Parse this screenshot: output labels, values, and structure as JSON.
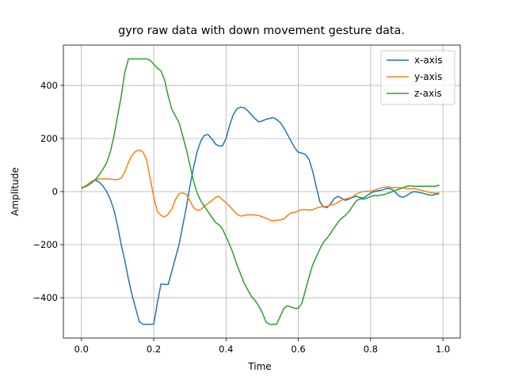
{
  "chart_data": {
    "type": "line",
    "title": "gyro raw data with down movement gesture data.",
    "x_label": "Time",
    "y_label": "Amplitude",
    "x": [
      0,
      0.01,
      0.02,
      0.03,
      0.04,
      0.05,
      0.06,
      0.07,
      0.08,
      0.09,
      0.1,
      0.11,
      0.12,
      0.13,
      0.14,
      0.15,
      0.16,
      0.17,
      0.18,
      0.19,
      0.2,
      0.21,
      0.22,
      0.23,
      0.24,
      0.25,
      0.26,
      0.27,
      0.28,
      0.29,
      0.3,
      0.31,
      0.32,
      0.33,
      0.34,
      0.35,
      0.36,
      0.37,
      0.38,
      0.39,
      0.4,
      0.41,
      0.42,
      0.43,
      0.44,
      0.45,
      0.46,
      0.47,
      0.48,
      0.49,
      0.5,
      0.51,
      0.52,
      0.53,
      0.54,
      0.55,
      0.56,
      0.57,
      0.58,
      0.59,
      0.6,
      0.61,
      0.62,
      0.63,
      0.64,
      0.65,
      0.66,
      0.67,
      0.68,
      0.69,
      0.7,
      0.71,
      0.72,
      0.73,
      0.74,
      0.75,
      0.76,
      0.77,
      0.78,
      0.79,
      0.8,
      0.81,
      0.82,
      0.83,
      0.84,
      0.85,
      0.86,
      0.87,
      0.88,
      0.89,
      0.9,
      0.91,
      0.92,
      0.93,
      0.94,
      0.95,
      0.96,
      0.97,
      0.98,
      0.99
    ],
    "series": [
      {
        "name": "x-axis",
        "color": "#1f77b4",
        "values": [
          13,
          20,
          30,
          40,
          42,
          35,
          20,
          0,
          -30,
          -70,
          -130,
          -200,
          -260,
          -330,
          -390,
          -440,
          -490,
          -500,
          -500,
          -500,
          -500,
          -420,
          -348,
          -350,
          -350,
          -300,
          -250,
          -200,
          -130,
          -60,
          20,
          90,
          150,
          190,
          212,
          215,
          200,
          180,
          172,
          172,
          200,
          250,
          290,
          312,
          318,
          316,
          305,
          290,
          275,
          263,
          266,
          272,
          276,
          279,
          272,
          260,
          240,
          215,
          190,
          165,
          148,
          145,
          140,
          120,
          75,
          15,
          -40,
          -58,
          -60,
          -45,
          -25,
          -18,
          -25,
          -33,
          -28,
          -22,
          -18,
          -22,
          -25,
          -15,
          -5,
          0,
          3,
          5,
          10,
          12,
          8,
          -5,
          -18,
          -22,
          -15,
          -5,
          0,
          -2,
          -5,
          -8,
          -12,
          -14,
          -10,
          -8
        ]
      },
      {
        "name": "y-axis",
        "color": "#ff7f0e",
        "values": [
          15,
          20,
          30,
          38,
          45,
          48,
          48,
          48,
          47,
          45,
          45,
          52,
          75,
          110,
          138,
          152,
          157,
          150,
          120,
          50,
          -20,
          -75,
          -90,
          -95,
          -85,
          -65,
          -30,
          -8,
          -5,
          -10,
          -35,
          -60,
          -70,
          -68,
          -55,
          -45,
          -35,
          -22,
          -18,
          -30,
          -42,
          -55,
          -70,
          -85,
          -92,
          -90,
          -87,
          -88,
          -88,
          -90,
          -95,
          -100,
          -107,
          -110,
          -108,
          -107,
          -103,
          -90,
          -80,
          -78,
          -72,
          -68,
          -68,
          -70,
          -68,
          -62,
          -58,
          -57,
          -55,
          -50,
          -48,
          -40,
          -32,
          -28,
          -25,
          -20,
          -10,
          -3,
          0,
          2,
          1,
          5,
          10,
          15,
          17,
          18,
          15,
          15,
          15,
          13,
          12,
          10,
          12,
          8,
          5,
          2,
          -2,
          -5,
          -6,
          -5
        ]
      },
      {
        "name": "z-axis",
        "color": "#2ca02c",
        "values": [
          13,
          18,
          25,
          35,
          48,
          65,
          85,
          110,
          150,
          210,
          285,
          360,
          450,
          500,
          500,
          500,
          500,
          500,
          500,
          495,
          480,
          465,
          455,
          420,
          360,
          310,
          285,
          260,
          210,
          160,
          100,
          40,
          -5,
          -35,
          -55,
          -75,
          -95,
          -115,
          -125,
          -140,
          -170,
          -200,
          -235,
          -275,
          -310,
          -345,
          -370,
          -395,
          -410,
          -430,
          -455,
          -490,
          -500,
          -500,
          -500,
          -470,
          -440,
          -430,
          -435,
          -440,
          -440,
          -420,
          -370,
          -320,
          -275,
          -245,
          -215,
          -190,
          -175,
          -155,
          -135,
          -115,
          -100,
          -90,
          -75,
          -55,
          -35,
          -28,
          -28,
          -25,
          -18,
          -15,
          -15,
          -13,
          -10,
          -5,
          0,
          5,
          10,
          15,
          20,
          22,
          20,
          20,
          20,
          20,
          20,
          20,
          20,
          25
        ]
      }
    ],
    "xlim": [
      -0.05,
      1.048
    ],
    "ylim": [
      -552,
      552
    ],
    "xticks": [
      {
        "value": 0,
        "label": "0.0"
      },
      {
        "value": 0.2,
        "label": "0.2"
      },
      {
        "value": 0.4,
        "label": "0.4"
      },
      {
        "value": 0.6,
        "label": "0.6"
      },
      {
        "value": 0.8,
        "label": "0.8"
      },
      {
        "value": 1,
        "label": "1.0"
      }
    ],
    "yticks": [
      {
        "value": -400,
        "label": "−400"
      },
      {
        "value": -200,
        "label": "−200"
      },
      0,
      200,
      400
    ],
    "grid": true,
    "legend": "upper-right"
  }
}
